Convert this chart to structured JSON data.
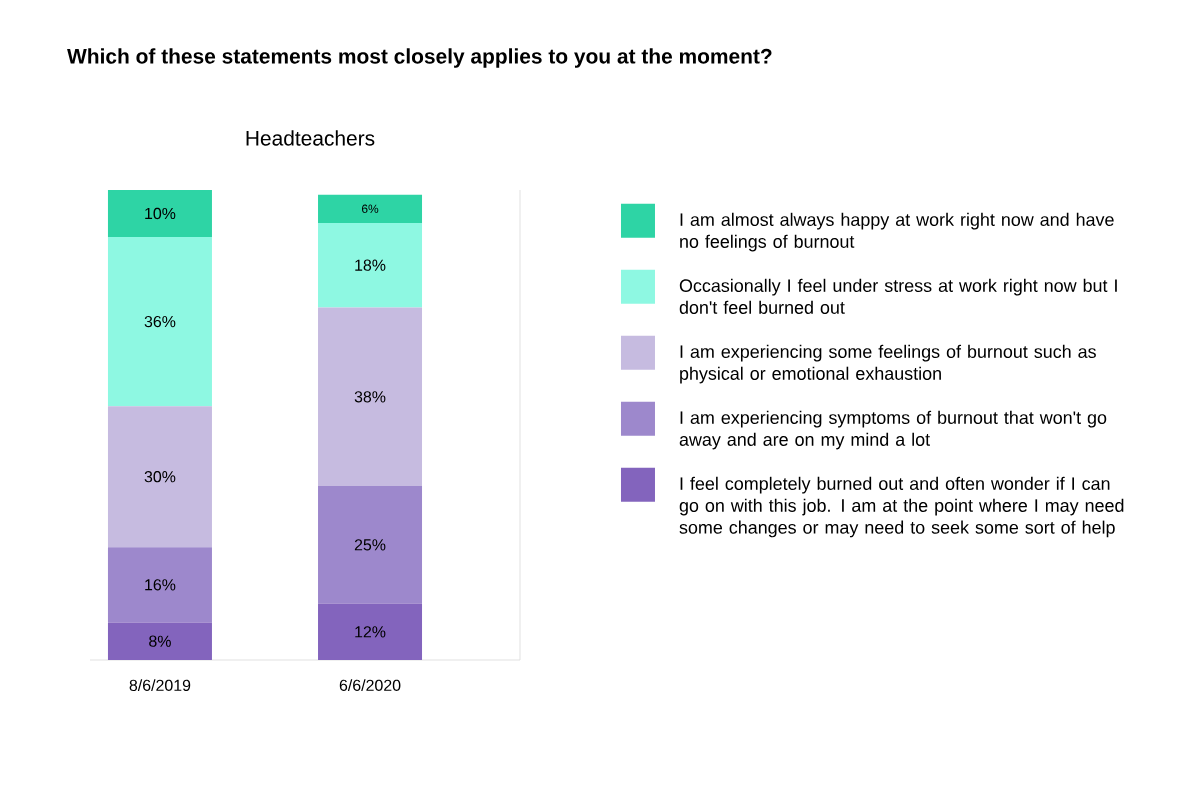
{
  "chart_data": {
    "type": "bar",
    "title": "Which of these statements most closely applies to you at the moment?",
    "subtitle": "Headteachers",
    "categories": [
      "8/6/2019",
      "6/6/2020"
    ],
    "stacked": true,
    "legend": "right",
    "series": [
      {
        "name": "I feel completely burned out and often wonder if I can go on with this job. I am at the point where I may need some changes or may need to seek some sort of help",
        "color": "#8364bd",
        "values": [
          8,
          12
        ],
        "value_labels": [
          "8%",
          "12%"
        ]
      },
      {
        "name": "I am experiencing symptoms of burnout that won't go away and are on my mind a lot",
        "color": "#9d88cc",
        "values": [
          16,
          25
        ],
        "value_labels": [
          "16%",
          "25%"
        ]
      },
      {
        "name": "I am experiencing some feelings of burnout such as physical or emotional exhaustion",
        "color": "#c6bbe0",
        "values": [
          30,
          38
        ],
        "value_labels": [
          "30%",
          "38%"
        ]
      },
      {
        "name": "Occasionally I feel under stress at work right now but I don't feel burned out",
        "color": "#8ef8e2",
        "values": [
          36,
          18
        ],
        "value_labels": [
          "36%",
          "18%"
        ]
      },
      {
        "name": "I am almost always happy at work right now and have no feelings of burnout",
        "color": "#2ed4a5",
        "values": [
          10,
          6
        ],
        "value_labels": [
          "10%",
          "6%"
        ]
      }
    ]
  }
}
